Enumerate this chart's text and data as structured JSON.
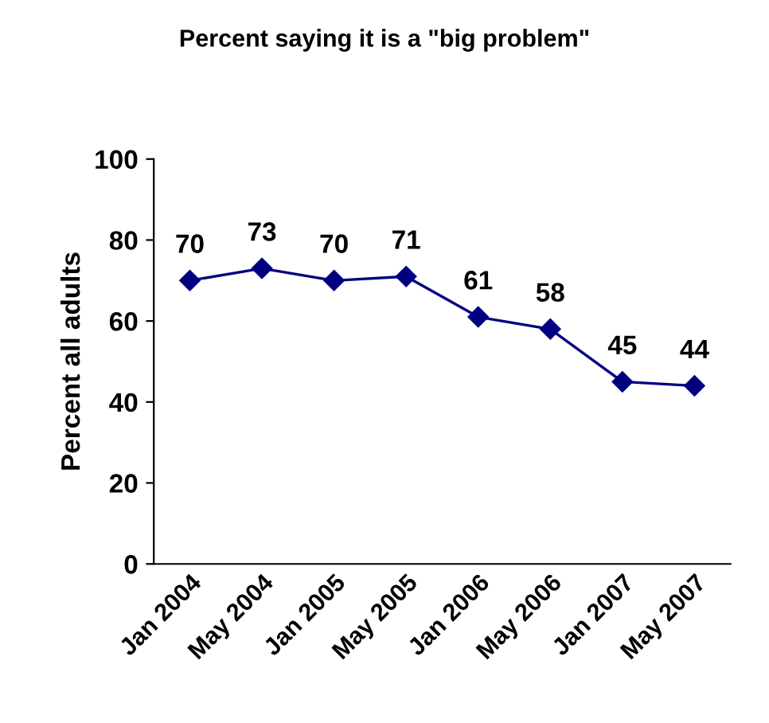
{
  "chart_data": {
    "type": "line",
    "title": "Percent saying it is a \"big problem\"",
    "ylabel": "Percent all adults",
    "categories": [
      "Jan 2004",
      "May 2004",
      "Jan 2005",
      "May 2005",
      "Jan 2006",
      "May 2006",
      "Jan 2007",
      "May 2007"
    ],
    "series": [
      {
        "color": "#000080",
        "values": [
          70,
          73,
          70,
          71,
          61,
          58,
          45,
          44
        ]
      }
    ],
    "ylim": [
      0,
      100
    ],
    "yticks": [
      0,
      20,
      40,
      60,
      80,
      100
    ],
    "grid": false,
    "marker": "diamond",
    "line_style": "solid",
    "data_labels": true
  }
}
